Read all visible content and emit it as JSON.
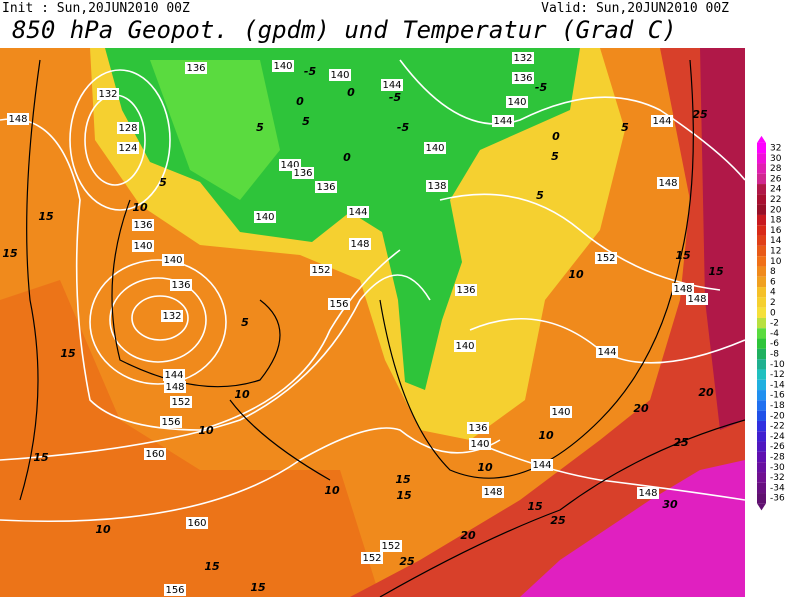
{
  "header": {
    "init": "Init : Sun,20JUN2010 00Z",
    "valid": "Valid: Sun,20JUN2010 00Z",
    "title": "850 hPa Geopot. (gpdm) und Temperatur (Grad C)"
  },
  "colorbar": {
    "labels": [
      32,
      30,
      28,
      26,
      24,
      22,
      20,
      18,
      16,
      14,
      12,
      10,
      8,
      6,
      4,
      2,
      0,
      -2,
      -4,
      -6,
      -8,
      -10,
      -12,
      -14,
      -16,
      -18,
      -20,
      -22,
      -24,
      -26,
      -28,
      -30,
      -32,
      -34,
      -36
    ],
    "colors": [
      "#ff00ff",
      "#f010d8",
      "#e020b0",
      "#d02890",
      "#b01848",
      "#a81030",
      "#981028",
      "#c81a20",
      "#d82a18",
      "#e04018",
      "#e85a18",
      "#f07018",
      "#f08a1c",
      "#f0a020",
      "#f5c028",
      "#f5d030",
      "#f5e03a",
      "#b8e040",
      "#5adb3f",
      "#2ec43a",
      "#20b060",
      "#20b090",
      "#20c0c0",
      "#20b0e0",
      "#2090f0",
      "#2070f0",
      "#2050e8",
      "#3030e0",
      "#4020d0",
      "#5018c0",
      "#6010b0",
      "#6810a0",
      "#701090",
      "#681080",
      "#601070"
    ]
  },
  "map": {
    "geopotential_labels": [
      148,
      132,
      128,
      124,
      136,
      140,
      140,
      144,
      132,
      136,
      140,
      144,
      144,
      148,
      152,
      148,
      148,
      144,
      140,
      144,
      148,
      148,
      152,
      152,
      136,
      140,
      140,
      136,
      138,
      140,
      144,
      148,
      152,
      156,
      140,
      140,
      136,
      132,
      144,
      148,
      152,
      156,
      160,
      160,
      156,
      136,
      140,
      136,
      136,
      140
    ],
    "temperature_labels": [
      15,
      15,
      15,
      15,
      10,
      15,
      15,
      10,
      10,
      10,
      5,
      10,
      5,
      15,
      15,
      10,
      15,
      20,
      25,
      25,
      20,
      20,
      25,
      30,
      25,
      15,
      15,
      10,
      10,
      5,
      5,
      5,
      0,
      -5,
      -5,
      -5,
      -5,
      0,
      0,
      0,
      5,
      5
    ]
  }
}
